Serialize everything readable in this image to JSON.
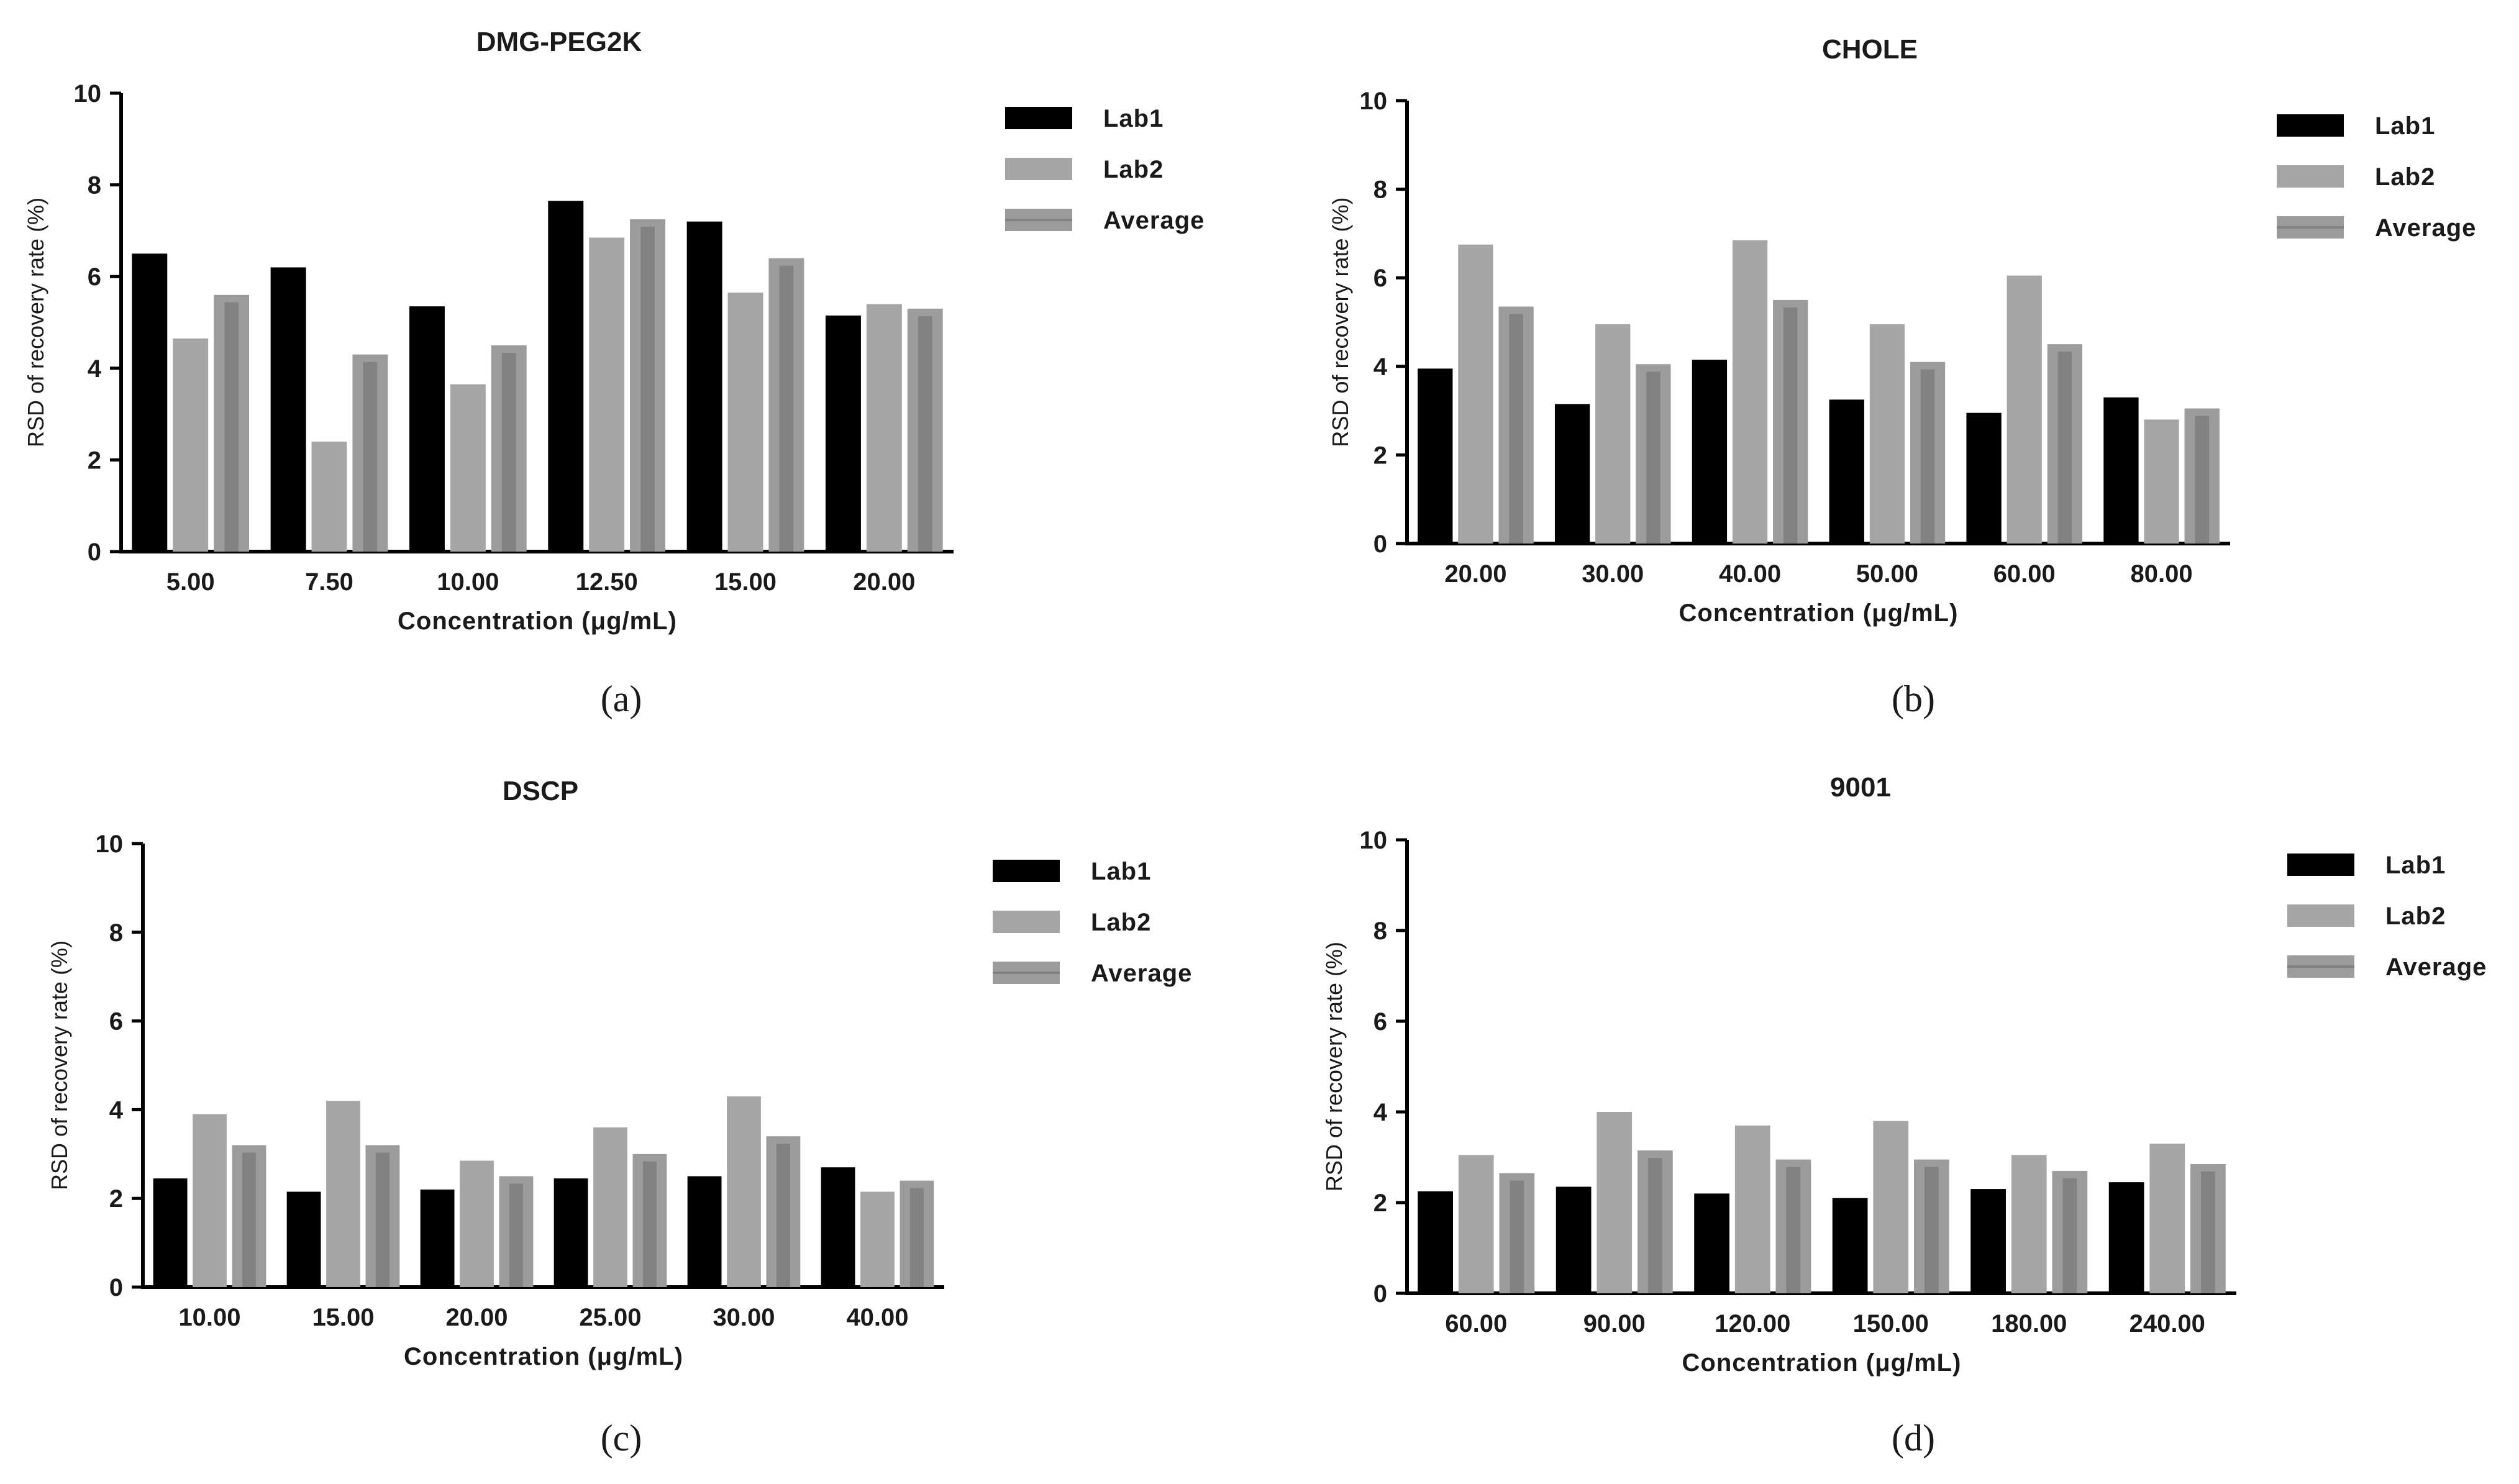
{
  "colors": {
    "lab1": "#000000",
    "lab2": "#a6a6a6",
    "average": "#9c9c9c",
    "average_inner": "#828282",
    "axis": "#000000"
  },
  "chart_data": [
    {
      "panel": "(a)",
      "type": "bar",
      "title": "DMG-PEG2K",
      "xlabel": "Concentration (μg/mL)",
      "ylabel": "RSD of recovery rate (%)",
      "ylim": [
        0,
        10
      ],
      "yticks": [
        "0",
        "2",
        "4",
        "6",
        "8",
        "10"
      ],
      "categories": [
        "5.00",
        "7.50",
        "10.00",
        "12.50",
        "15.00",
        "20.00"
      ],
      "legend_position": "top-right",
      "series": [
        {
          "name": "Lab1",
          "values": [
            6.5,
            6.2,
            5.35,
            7.65,
            7.2,
            5.15
          ]
        },
        {
          "name": "Lab2",
          "values": [
            4.65,
            2.4,
            3.65,
            6.85,
            5.65,
            5.4
          ]
        },
        {
          "name": "Average",
          "values": [
            5.6,
            4.3,
            4.5,
            7.25,
            6.4,
            5.3
          ]
        }
      ]
    },
    {
      "panel": "(b)",
      "type": "bar",
      "title": "CHOLE",
      "xlabel": "Concentration (μg/mL)",
      "ylabel": "RSD of recovery rate (%)",
      "ylim": [
        0,
        10
      ],
      "yticks": [
        "0",
        "2",
        "4",
        "6",
        "8",
        "10"
      ],
      "categories": [
        "20.00",
        "30.00",
        "40.00",
        "50.00",
        "60.00",
        "80.00"
      ],
      "legend_position": "top-right",
      "series": [
        {
          "name": "Lab1",
          "values": [
            3.95,
            3.15,
            4.15,
            3.25,
            2.95,
            3.3
          ]
        },
        {
          "name": "Lab2",
          "values": [
            6.75,
            4.95,
            6.85,
            4.95,
            6.05,
            2.8
          ]
        },
        {
          "name": "Average",
          "values": [
            5.35,
            4.05,
            5.5,
            4.1,
            4.5,
            3.05
          ]
        }
      ]
    },
    {
      "panel": "(c)",
      "type": "bar",
      "title": "DSCP",
      "xlabel": "Concentration (μg/mL)",
      "ylabel": "RSD of recovery rate (%)",
      "ylim": [
        0,
        10
      ],
      "yticks": [
        "0",
        "2",
        "4",
        "6",
        "8",
        "10"
      ],
      "categories": [
        "10.00",
        "15.00",
        "20.00",
        "25.00",
        "30.00",
        "40.00"
      ],
      "legend_position": "top-right",
      "series": [
        {
          "name": "Lab1",
          "values": [
            2.45,
            2.15,
            2.2,
            2.45,
            2.5,
            2.7
          ]
        },
        {
          "name": "Lab2",
          "values": [
            3.9,
            4.2,
            2.85,
            3.6,
            4.3,
            2.15
          ]
        },
        {
          "name": "Average",
          "values": [
            3.2,
            3.2,
            2.5,
            3.0,
            3.4,
            2.4
          ]
        }
      ]
    },
    {
      "panel": "(d)",
      "type": "bar",
      "title": "9001",
      "xlabel": "Concentration (μg/mL)",
      "ylabel": "RSD of recovery rate (%)",
      "ylim": [
        0,
        10
      ],
      "yticks": [
        "0",
        "2",
        "4",
        "6",
        "8",
        "10"
      ],
      "categories": [
        "60.00",
        "90.00",
        "120.00",
        "150.00",
        "180.00",
        "240.00"
      ],
      "legend_position": "top-right",
      "series": [
        {
          "name": "Lab1",
          "values": [
            2.25,
            2.35,
            2.2,
            2.1,
            2.3,
            2.45
          ]
        },
        {
          "name": "Lab2",
          "values": [
            3.05,
            4.0,
            3.7,
            3.8,
            3.05,
            3.3
          ]
        },
        {
          "name": "Average",
          "values": [
            2.65,
            3.15,
            2.95,
            2.95,
            2.7,
            2.85
          ]
        }
      ]
    }
  ]
}
